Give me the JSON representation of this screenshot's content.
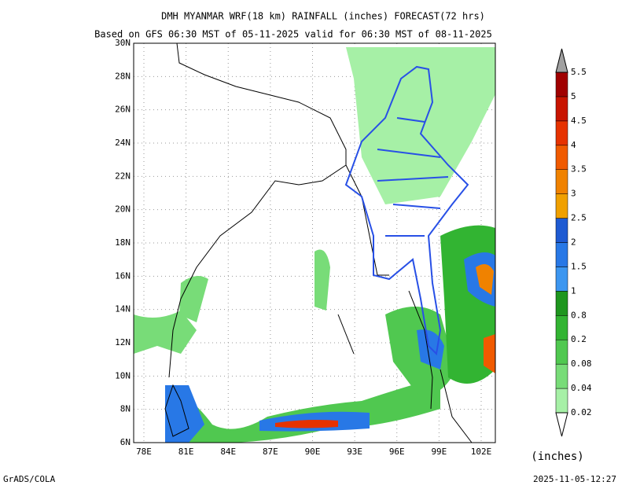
{
  "header": {
    "title": "DMH MYANMAR WRF(18 km) RAINFALL (inches) FORECAST(72 hrs)",
    "subtitle": "Based on GFS 06:30 MST of 05-11-2025 valid for 06:30 MST of 08-11-2025"
  },
  "map": {
    "lat_labels": [
      "30N",
      "28N",
      "26N",
      "24N",
      "22N",
      "20N",
      "18N",
      "16N",
      "14N",
      "12N",
      "10N",
      "8N",
      "6N"
    ],
    "lon_labels": [
      "78E",
      "81E",
      "84E",
      "87E",
      "90E",
      "93E",
      "96E",
      "99E",
      "102E"
    ]
  },
  "legend": {
    "levels": [
      "0.02",
      "0.04",
      "0.08",
      "0.2",
      "0.8",
      "1",
      "1.5",
      "2",
      "2.5",
      "3",
      "3.5",
      "4",
      "4.5",
      "5",
      "5.5"
    ],
    "colors": [
      "#a6f0a6",
      "#78dc78",
      "#50c850",
      "#32b432",
      "#1e961e",
      "#3c96f0",
      "#2878e6",
      "#1e5ad2",
      "#f0a000",
      "#f08200",
      "#f05a00",
      "#e63200",
      "#c81400",
      "#a00000"
    ],
    "unit": "(inches)"
  },
  "footer": {
    "left": "GrADS/COLA",
    "right": "2025-11-05-12:27"
  }
}
